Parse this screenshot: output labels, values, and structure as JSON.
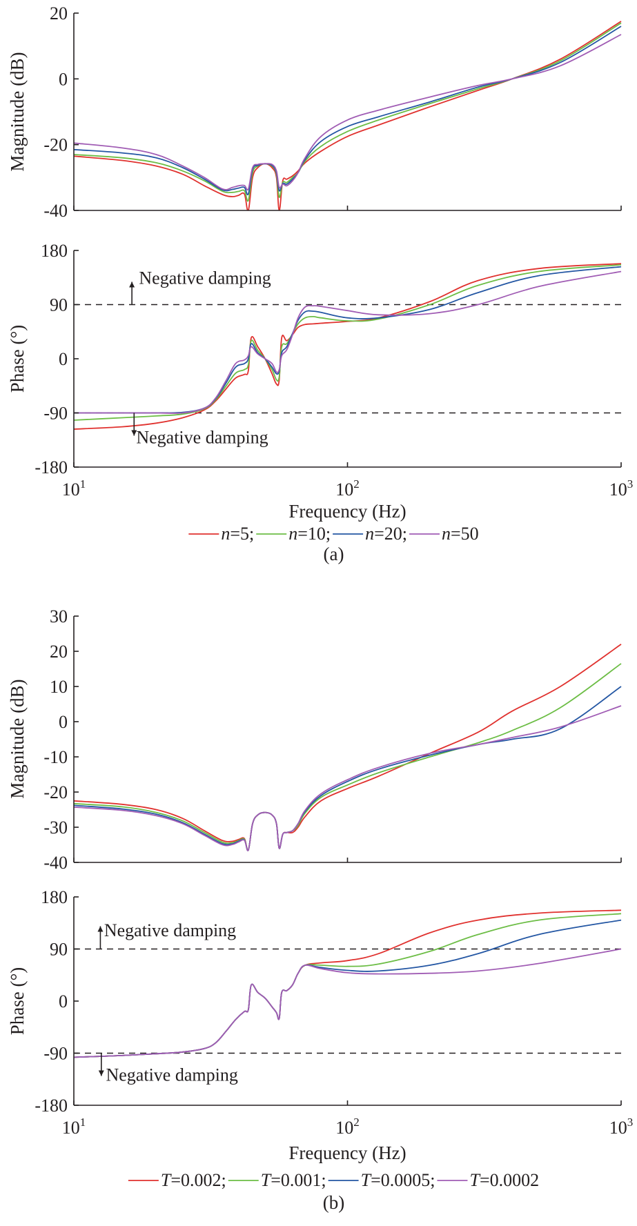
{
  "chart_data": [
    {
      "id": "a",
      "type": "line",
      "caption": "(a)",
      "xlabel": "Frequency (Hz)",
      "xscale": "log",
      "xlim": [
        10,
        1000
      ],
      "xticks": [
        {
          "base": "10",
          "exp": "1",
          "value": 10
        },
        {
          "base": "10",
          "exp": "2",
          "value": 100
        },
        {
          "base": "10",
          "exp": "3",
          "value": 1000
        }
      ],
      "legend_position": "bottom-center",
      "legend": [
        {
          "var": "n",
          "eq": "=5;",
          "color": "#e0312e"
        },
        {
          "var": "n",
          "eq": "=10;",
          "color": "#6cbd45"
        },
        {
          "var": "n",
          "eq": "=20;",
          "color": "#2356a3"
        },
        {
          "var": "n",
          "eq": "=50",
          "color": "#a05cb4"
        }
      ],
      "panels": [
        {
          "name": "magnitude",
          "ylabel": "Magnitude (dB)",
          "ylim": [
            -40,
            20
          ],
          "yticks": [
            20,
            0,
            -20,
            -40
          ],
          "ref_lines": [],
          "annotations": [],
          "x": [
            10,
            15,
            20,
            25,
            30,
            35,
            38,
            40,
            42,
            43.4,
            45,
            47,
            50,
            53,
            55,
            56.3,
            58,
            60,
            63,
            66,
            70,
            80,
            100,
            130,
            200,
            300,
            400,
            600,
            1000
          ],
          "series": [
            {
              "name": "n=5",
              "values": [
                -23.5,
                -24.8,
                -26.5,
                -29,
                -32.5,
                -35.2,
                -35.8,
                -35.4,
                -35,
                -40,
                -30,
                -27,
                -25.8,
                -27,
                -30,
                -40,
                -31,
                -30.5,
                -29.5,
                -28,
                -25.5,
                -22,
                -17.5,
                -14,
                -8.5,
                -3.5,
                0,
                6,
                17.5
              ]
            },
            {
              "name": "n=10",
              "values": [
                -23,
                -24,
                -25.5,
                -28,
                -31,
                -34.2,
                -34.5,
                -34.2,
                -34,
                -37,
                -28.5,
                -26.5,
                -25.8,
                -26.5,
                -29,
                -36,
                -31.5,
                -31.5,
                -30,
                -28.5,
                -25,
                -20.5,
                -16,
                -12.5,
                -7.5,
                -3,
                0,
                5.5,
                17
              ]
            },
            {
              "name": "n=20",
              "values": [
                -21.5,
                -22.5,
                -24,
                -27,
                -30.5,
                -33.8,
                -33.6,
                -33.2,
                -33,
                -35,
                -27.5,
                -26.3,
                -25.8,
                -26.3,
                -28.5,
                -34,
                -31.8,
                -32,
                -30.5,
                -28.5,
                -24.5,
                -19,
                -14.5,
                -11.5,
                -7,
                -2.5,
                0,
                5,
                16
              ]
            },
            {
              "name": "n=50",
              "values": [
                -19.5,
                -21,
                -23,
                -26.5,
                -30,
                -33.5,
                -33,
                -32.5,
                -32.4,
                -33.5,
                -27,
                -26,
                -25.8,
                -26,
                -28,
                -33,
                -32,
                -32.5,
                -31,
                -28.5,
                -24,
                -17.5,
                -12.5,
                -9.5,
                -5.5,
                -2,
                0,
                4,
                13.5
              ]
            }
          ]
        },
        {
          "name": "phase",
          "ylabel": "Phase (°)",
          "ylim": [
            -180,
            180
          ],
          "yticks": [
            180,
            90,
            0,
            -90,
            -180
          ],
          "ref_lines": [
            90,
            -90
          ],
          "annotations": [
            {
              "text": "Negative damping",
              "direction": "up",
              "at": 90,
              "arrow_x": 16.3,
              "text_x": 17.3,
              "text_y": 135
            },
            {
              "text": "Negative damping",
              "direction": "down",
              "at": -90,
              "arrow_x": 16.6,
              "text_x": 16.9,
              "text_y": -130
            }
          ],
          "x": [
            10,
            15,
            20,
            25,
            30,
            33,
            36,
            39,
            42,
            43.4,
            44.5,
            47,
            50,
            53,
            55,
            56.3,
            57.5,
            60,
            63,
            66,
            70,
            75,
            80,
            100,
            130,
            200,
            300,
            500,
            1000
          ],
          "series": [
            {
              "name": "n=5",
              "values": [
                -117,
                -113,
                -107,
                -98,
                -85,
                -70,
                -50,
                -32,
                -26,
                -20,
                35,
                20,
                0,
                -25,
                -42,
                -35,
                35,
                30,
                40,
                52,
                57,
                58,
                59,
                62,
                68,
                95,
                130,
                150,
                158
              ]
            },
            {
              "name": "n=10",
              "values": [
                -102,
                -98,
                -95,
                -92,
                -83,
                -68,
                -45,
                -24,
                -18,
                -10,
                30,
                14,
                0,
                -18,
                -35,
                -30,
                20,
                25,
                42,
                58,
                68,
                70,
                68,
                63,
                66,
                90,
                122,
                145,
                156
              ]
            },
            {
              "name": "n=20",
              "values": [
                -90,
                -90,
                -90,
                -89,
                -82,
                -66,
                -40,
                -14,
                -8,
                0,
                25,
                10,
                0,
                -14,
                -25,
                -20,
                10,
                20,
                42,
                64,
                78,
                79,
                77,
                68,
                68,
                82,
                110,
                138,
                153
              ]
            },
            {
              "name": "n=50",
              "values": [
                -90,
                -90,
                -90,
                -90,
                -82,
                -65,
                -36,
                -8,
                -2,
                5,
                20,
                8,
                0,
                -8,
                -22,
                -18,
                5,
                15,
                40,
                68,
                86,
                88,
                87,
                80,
                73,
                75,
                90,
                120,
                145
              ]
            }
          ]
        }
      ]
    },
    {
      "id": "b",
      "type": "line",
      "caption": "(b)",
      "xlabel": "Frequency (Hz)",
      "xscale": "log",
      "xlim": [
        10,
        1000
      ],
      "xticks": [
        {
          "base": "10",
          "exp": "1",
          "value": 10
        },
        {
          "base": "10",
          "exp": "2",
          "value": 100
        },
        {
          "base": "10",
          "exp": "3",
          "value": 1000
        }
      ],
      "legend_position": "bottom-center",
      "legend": [
        {
          "var": "T",
          "eq": "=0.002;",
          "color": "#e0312e"
        },
        {
          "var": "T",
          "eq": "=0.001;",
          "color": "#6cbd45"
        },
        {
          "var": "T",
          "eq": "=0.0005;",
          "color": "#2356a3"
        },
        {
          "var": "T",
          "eq": "=0.0002",
          "color": "#a05cb4"
        }
      ],
      "panels": [
        {
          "name": "magnitude",
          "ylabel": "Magnitude (dB)",
          "ylim": [
            -40,
            30
          ],
          "yticks": [
            30,
            20,
            10,
            0,
            -10,
            -20,
            -30,
            -40
          ],
          "ref_lines": [],
          "annotations": [],
          "x": [
            10,
            15,
            20,
            25,
            30,
            35,
            38,
            40,
            42,
            43.4,
            45,
            47,
            50,
            53,
            55,
            56.3,
            58,
            60,
            63,
            66,
            70,
            80,
            100,
            130,
            200,
            300,
            400,
            600,
            1000
          ],
          "series": [
            {
              "name": "T=0.002",
              "values": [
                -22.5,
                -23.5,
                -25,
                -27.5,
                -31,
                -33.8,
                -34,
                -33.5,
                -33.2,
                -36.5,
                -29,
                -26.5,
                -25.8,
                -26.5,
                -29,
                -36,
                -32,
                -31.5,
                -31.5,
                -30,
                -27,
                -22.5,
                -19,
                -15.5,
                -9,
                -3,
                3,
                10,
                22
              ]
            },
            {
              "name": "T=0.001",
              "values": [
                -23.3,
                -24.2,
                -25.8,
                -28.2,
                -31.5,
                -34.3,
                -34.4,
                -33.8,
                -33.4,
                -36.5,
                -29,
                -26.5,
                -25.8,
                -26.5,
                -29,
                -36,
                -32,
                -31.5,
                -31,
                -29.5,
                -26,
                -21.5,
                -18,
                -14.5,
                -10,
                -6,
                -2.5,
                4,
                16.5
              ]
            },
            {
              "name": "T=0.0005",
              "values": [
                -23.8,
                -24.8,
                -26.3,
                -28.7,
                -32,
                -34.7,
                -34.7,
                -34,
                -33.6,
                -36.5,
                -29,
                -26.5,
                -25.8,
                -26.5,
                -29,
                -36,
                -32,
                -31.5,
                -31,
                -29,
                -25.5,
                -21,
                -17,
                -13.5,
                -9.5,
                -6.5,
                -5,
                -2,
                10
              ]
            },
            {
              "name": "T=0.0002",
              "values": [
                -24.3,
                -25.2,
                -26.7,
                -29,
                -32.3,
                -35,
                -34.9,
                -34.2,
                -33.7,
                -36.5,
                -29,
                -26.5,
                -25.8,
                -26.5,
                -29,
                -36,
                -32,
                -31.5,
                -31,
                -29,
                -25.2,
                -20.5,
                -16.5,
                -13,
                -9,
                -6.5,
                -4.5,
                -1.5,
                4.5
              ]
            }
          ]
        },
        {
          "name": "phase",
          "ylabel": "Phase (°)",
          "ylim": [
            -180,
            180
          ],
          "yticks": [
            180,
            90,
            0,
            -90,
            -180
          ],
          "ref_lines": [
            90,
            -90
          ],
          "annotations": [
            {
              "text": "Negative damping",
              "direction": "up",
              "at": 90,
              "arrow_x": 12.5,
              "text_x": 12.9,
              "text_y": 123
            },
            {
              "text": "Negative damping",
              "direction": "down",
              "at": -90,
              "arrow_x": 12.6,
              "text_x": 13.1,
              "text_y": -127
            }
          ],
          "x": [
            10,
            15,
            20,
            25,
            30,
            33,
            36,
            39,
            42,
            43.4,
            44.5,
            47,
            50,
            53,
            55,
            56.3,
            57.5,
            60,
            63,
            66,
            70,
            80,
            100,
            130,
            200,
            300,
            500,
            1000
          ],
          "series": [
            {
              "name": "T=0.002",
              "values": [
                -97,
                -94,
                -91,
                -88,
                -82,
                -72,
                -52,
                -32,
                -18,
                -15,
                28,
                15,
                5,
                -10,
                -20,
                -30,
                15,
                18,
                28,
                48,
                62,
                66,
                70,
                82,
                118,
                140,
                152,
                157
              ]
            },
            {
              "name": "T=0.001",
              "values": [
                -97,
                -94,
                -91,
                -88,
                -82,
                -72,
                -52,
                -32,
                -18,
                -15,
                28,
                15,
                5,
                -10,
                -20,
                -30,
                15,
                18,
                28,
                48,
                62,
                62,
                60,
                64,
                86,
                115,
                140,
                151
              ]
            },
            {
              "name": "T=0.0005",
              "values": [
                -97,
                -94,
                -91,
                -88,
                -82,
                -72,
                -52,
                -32,
                -18,
                -15,
                28,
                15,
                5,
                -10,
                -20,
                -30,
                15,
                18,
                28,
                48,
                62,
                58,
                53,
                52,
                62,
                82,
                115,
                140
              ]
            },
            {
              "name": "T=0.0002",
              "values": [
                -97,
                -94,
                -91,
                -88,
                -82,
                -72,
                -52,
                -32,
                -18,
                -15,
                28,
                15,
                5,
                -10,
                -20,
                -30,
                15,
                18,
                28,
                48,
                62,
                56,
                49,
                47,
                48,
                52,
                65,
                90
              ]
            }
          ]
        }
      ]
    }
  ]
}
